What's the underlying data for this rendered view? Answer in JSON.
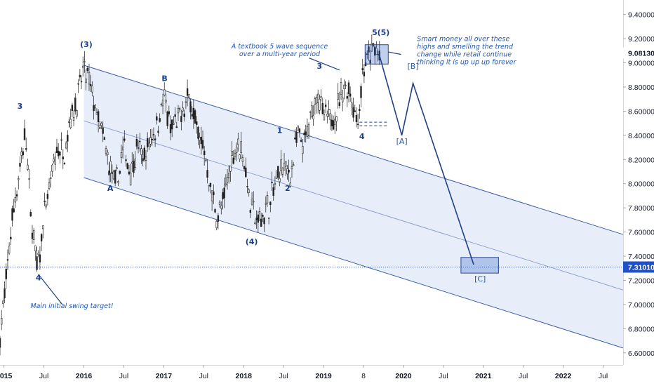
{
  "chart_data": {
    "type": "candlestick",
    "price_scale": [
      9.4,
      9.2,
      9.0,
      8.8,
      8.6,
      8.4,
      8.2,
      8.0,
      7.8,
      7.6,
      7.4,
      7.2,
      7.0,
      6.8,
      6.6
    ],
    "price_labels": [
      "9.40000",
      "9.20000",
      "9.00000",
      "8.80000",
      "8.60000",
      "8.40000",
      "8.20000",
      "8.00000",
      "7.80000",
      "7.60000",
      "7.40000",
      "7.20000",
      "7.00000",
      "6.80000",
      "6.60000"
    ],
    "ylim": [
      6.5,
      9.52
    ],
    "xlim": [
      2014.95,
      2022.75
    ],
    "time_ticks": [
      {
        "t": 2015.0,
        "label": "2015",
        "year": true
      },
      {
        "t": 2015.5,
        "label": "Jul",
        "year": false
      },
      {
        "t": 2016.0,
        "label": "2016",
        "year": true
      },
      {
        "t": 2016.5,
        "label": "Jul",
        "year": false
      },
      {
        "t": 2017.0,
        "label": "2017",
        "year": true
      },
      {
        "t": 2017.5,
        "label": "Jul",
        "year": false
      },
      {
        "t": 2018.0,
        "label": "2018",
        "year": true
      },
      {
        "t": 2018.5,
        "label": "Jul",
        "year": false
      },
      {
        "t": 2019.0,
        "label": "2019",
        "year": true
      },
      {
        "t": 2019.5,
        "label": "8",
        "year": false
      },
      {
        "t": 2020.0,
        "label": "2020",
        "year": true
      },
      {
        "t": 2020.5,
        "label": "Jul",
        "year": false
      },
      {
        "t": 2021.0,
        "label": "2021",
        "year": true
      },
      {
        "t": 2021.5,
        "label": "Jul",
        "year": false
      },
      {
        "t": 2022.0,
        "label": "2022",
        "year": true
      },
      {
        "t": 2022.5,
        "label": "Jul",
        "year": false
      }
    ],
    "price_path": [
      [
        2014.95,
        6.74
      ],
      [
        2015.02,
        7.15
      ],
      [
        2015.1,
        7.7
      ],
      [
        2015.18,
        8.05
      ],
      [
        2015.27,
        8.42
      ],
      [
        2015.33,
        7.78
      ],
      [
        2015.42,
        7.28
      ],
      [
        2015.5,
        7.72
      ],
      [
        2015.58,
        8.0
      ],
      [
        2015.67,
        8.3
      ],
      [
        2015.75,
        8.25
      ],
      [
        2015.83,
        8.55
      ],
      [
        2015.92,
        8.7
      ],
      [
        2016.0,
        8.96
      ],
      [
        2016.08,
        8.8
      ],
      [
        2016.17,
        8.55
      ],
      [
        2016.25,
        8.35
      ],
      [
        2016.33,
        8.1
      ],
      [
        2016.4,
        7.98
      ],
      [
        2016.5,
        8.3
      ],
      [
        2016.58,
        8.1
      ],
      [
        2016.67,
        8.3
      ],
      [
        2016.75,
        8.2
      ],
      [
        2016.83,
        8.35
      ],
      [
        2016.92,
        8.5
      ],
      [
        2017.0,
        8.72
      ],
      [
        2017.08,
        8.45
      ],
      [
        2017.17,
        8.5
      ],
      [
        2017.25,
        8.62
      ],
      [
        2017.33,
        8.72
      ],
      [
        2017.42,
        8.42
      ],
      [
        2017.5,
        8.3
      ],
      [
        2017.58,
        7.98
      ],
      [
        2017.67,
        7.72
      ],
      [
        2017.75,
        7.85
      ],
      [
        2017.83,
        8.15
      ],
      [
        2017.92,
        8.35
      ],
      [
        2018.0,
        8.22
      ],
      [
        2018.08,
        7.85
      ],
      [
        2018.17,
        7.68
      ],
      [
        2018.25,
        7.75
      ],
      [
        2018.33,
        7.85
      ],
      [
        2018.42,
        8.05
      ],
      [
        2018.5,
        8.15
      ],
      [
        2018.58,
        8.05
      ],
      [
        2018.67,
        8.4
      ],
      [
        2018.75,
        8.3
      ],
      [
        2018.83,
        8.5
      ],
      [
        2018.92,
        8.78
      ],
      [
        2019.0,
        8.55
      ],
      [
        2019.08,
        8.52
      ],
      [
        2019.17,
        8.62
      ],
      [
        2019.25,
        8.8
      ],
      [
        2019.33,
        8.78
      ],
      [
        2019.42,
        8.5
      ],
      [
        2019.5,
        8.95
      ],
      [
        2019.58,
        9.05
      ],
      [
        2019.65,
        9.12
      ],
      [
        2019.7,
        9.06
      ]
    ],
    "current_price": 9.0813,
    "current_price_label": "9.08130",
    "target_price": 7.3101,
    "target_price_label": "7.31010",
    "channel": {
      "upper": [
        [
          2016.0,
          8.98
        ],
        [
          2022.75,
          7.58
        ]
      ],
      "middle": [
        [
          2016.0,
          8.52
        ],
        [
          2022.75,
          7.12
        ]
      ],
      "lower": [
        [
          2016.0,
          8.05
        ],
        [
          2022.75,
          6.64
        ]
      ]
    },
    "forecast_path": [
      [
        2019.7,
        9.06
      ],
      [
        2019.98,
        8.4
      ],
      [
        2020.12,
        8.83
      ],
      [
        2020.88,
        7.33
      ]
    ],
    "support_level": {
      "t0": 2019.45,
      "t1": 2019.81,
      "price": 8.48
    },
    "boxes": [
      {
        "t0": 2019.52,
        "t1": 2019.81,
        "p0": 8.99,
        "p1": 9.15
      },
      {
        "t0": 2020.72,
        "t1": 2021.19,
        "p0": 7.26,
        "p1": 7.39
      }
    ],
    "wave_labels": [
      {
        "text": "(3)",
        "t": 2016.03,
        "p": 9.13,
        "style": "bold"
      },
      {
        "text": "3",
        "t": 2015.2,
        "p": 8.62,
        "style": "bold"
      },
      {
        "text": "4",
        "t": 2015.43,
        "p": 7.2,
        "style": "bold"
      },
      {
        "text": "A",
        "t": 2016.33,
        "p": 7.94,
        "style": "bold"
      },
      {
        "text": "B",
        "t": 2017.01,
        "p": 8.85,
        "style": "bold"
      },
      {
        "text": "(4)",
        "t": 2018.1,
        "p": 7.5,
        "style": "bold"
      },
      {
        "text": "1",
        "t": 2018.45,
        "p": 8.42,
        "style": "bold"
      },
      {
        "text": "2",
        "t": 2018.55,
        "p": 7.94,
        "style": "bold"
      },
      {
        "text": "3",
        "t": 2018.95,
        "p": 8.95,
        "style": "bold"
      },
      {
        "text": "4",
        "t": 2019.48,
        "p": 8.37,
        "style": "bold"
      },
      {
        "text": "5",
        "t": 2019.64,
        "p": 9.23,
        "style": "bold"
      },
      {
        "text": "(5)",
        "t": 2019.75,
        "p": 9.23,
        "style": "bold"
      },
      {
        "text": "[A]",
        "t": 2019.98,
        "p": 8.33,
        "style": "plain"
      },
      {
        "text": "[B]",
        "t": 2020.12,
        "p": 8.95,
        "style": "plain"
      },
      {
        "text": "[C]",
        "t": 2020.96,
        "p": 7.19,
        "style": "plain"
      }
    ],
    "annotations": [
      {
        "lines": [
          "A textbook 5 wave sequence",
          "over a multi-year period"
        ],
        "t": 2018.45,
        "p": 9.12,
        "pointer": [
          [
            2018.82,
            9.04
          ],
          [
            2019.2,
            8.94
          ]
        ]
      },
      {
        "lines": [
          "Smart money all over these",
          "highs and smelling the trend",
          "change while retail continue",
          "thinking it is up up up forever"
        ],
        "t": 2020.17,
        "p": 9.18,
        "pointer": [
          [
            2019.97,
            9.07
          ],
          [
            2019.81,
            9.09
          ]
        ]
      },
      {
        "lines": [
          "Main initial swing target!"
        ],
        "t": 2015.85,
        "p": 6.97,
        "pointer": [
          [
            2015.43,
            7.25
          ],
          [
            2015.73,
            7.0
          ]
        ]
      }
    ]
  }
}
